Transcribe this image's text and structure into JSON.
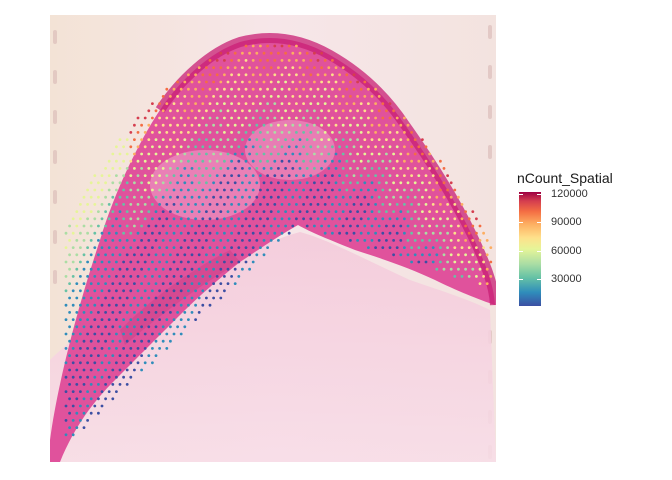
{
  "legend": {
    "title": "nCount_Spatial",
    "ticks": [
      {
        "label": "120000",
        "value": 120000
      },
      {
        "label": "90000",
        "value": 90000
      },
      {
        "label": "60000",
        "value": 60000
      },
      {
        "label": "30000",
        "value": 30000
      }
    ],
    "min": 2000,
    "max": 122000,
    "palette": [
      "#3b4fa3",
      "#2f8dbb",
      "#66c2a5",
      "#abdda4",
      "#e6f598",
      "#fee08b",
      "#fdae61",
      "#f46d43",
      "#d53e4f",
      "#9e0142"
    ]
  },
  "colors": {
    "background": "#ffffff",
    "slide": "#f6e6e8",
    "tissue_dark": "#d83a8a",
    "tissue_light": "#ef9cc4"
  }
}
